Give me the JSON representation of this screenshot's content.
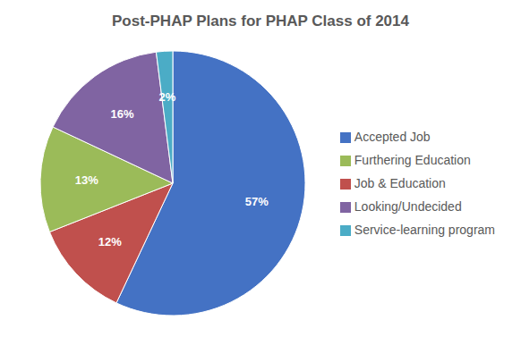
{
  "chart_data": {
    "type": "pie",
    "title": "Post-PHAP Plans for PHAP Class of 2014",
    "categories": [
      "Accepted Job",
      "Job & Education",
      "Furthering Education",
      "Looking/Undecided",
      "Service-learning program"
    ],
    "values": [
      57,
      12,
      13,
      16,
      2
    ],
    "value_labels": [
      "57%",
      "12%",
      "13%",
      "16%",
      "2%"
    ],
    "colors": [
      "#4472C4",
      "#C0504D",
      "#9BBB59",
      "#8064A2",
      "#4BACC6"
    ],
    "data_labels": true,
    "legend": "right"
  }
}
